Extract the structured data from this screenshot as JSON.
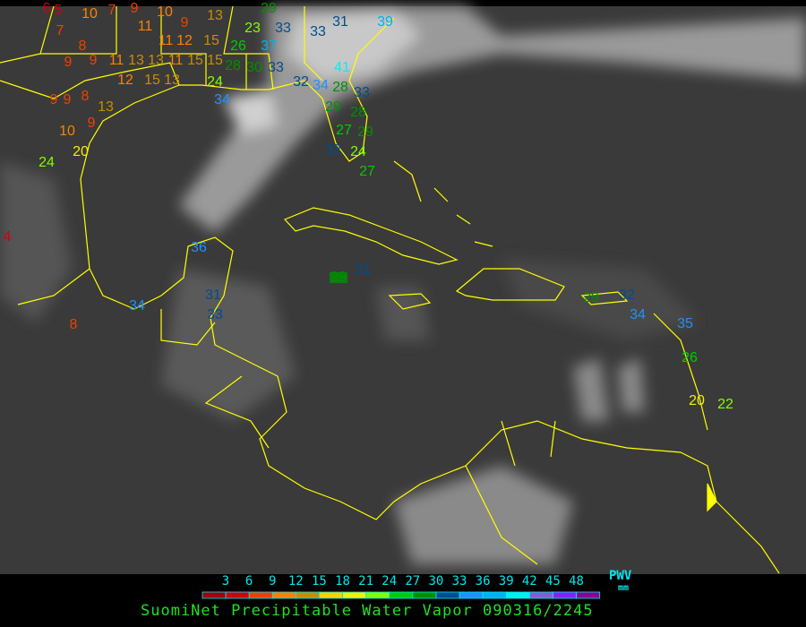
{
  "title": "SuomiNet Precipitable Water Vapor 090316/2245",
  "legend": {
    "unit_label": "PWV",
    "unit": "mm",
    "ticks": [
      "3",
      "6",
      "9",
      "12",
      "15",
      "18",
      "21",
      "24",
      "27",
      "30",
      "33",
      "36",
      "39",
      "42",
      "45",
      "48"
    ],
    "colors": [
      "#a00010",
      "#d00010",
      "#f04000",
      "#ff8000",
      "#cc8c00",
      "#ffd000",
      "#f0f000",
      "#80ff00",
      "#00cc00",
      "#009000",
      "#004c90",
      "#2090ff",
      "#00b0f0",
      "#00f0f0",
      "#8060d0",
      "#8a20f0",
      "#900090"
    ]
  },
  "map": {
    "background": "#3c3c3c",
    "border_color": "#ffff00",
    "stations": [
      "6",
      "5",
      "10",
      "7",
      "9",
      "11",
      "10",
      "9",
      "13",
      "7",
      "8",
      "9",
      "9",
      "11",
      "13",
      "13",
      "11",
      "12",
      "15",
      "15",
      "11",
      "15",
      "12",
      "15",
      "13",
      "29",
      "23",
      "37",
      "33",
      "26",
      "28",
      "30",
      "33",
      "24",
      "34",
      "33",
      "31",
      "39",
      "41",
      "32",
      "34",
      "28",
      "33",
      "29",
      "28",
      "27",
      "29",
      "32",
      "24",
      "27",
      "9",
      "9",
      "8",
      "13",
      "9",
      "10",
      "20",
      "24",
      "4",
      "36",
      "34",
      "8",
      "31",
      "33",
      "31",
      "29",
      "29",
      "32",
      "34",
      "35",
      "26",
      "20",
      "22"
    ]
  }
}
